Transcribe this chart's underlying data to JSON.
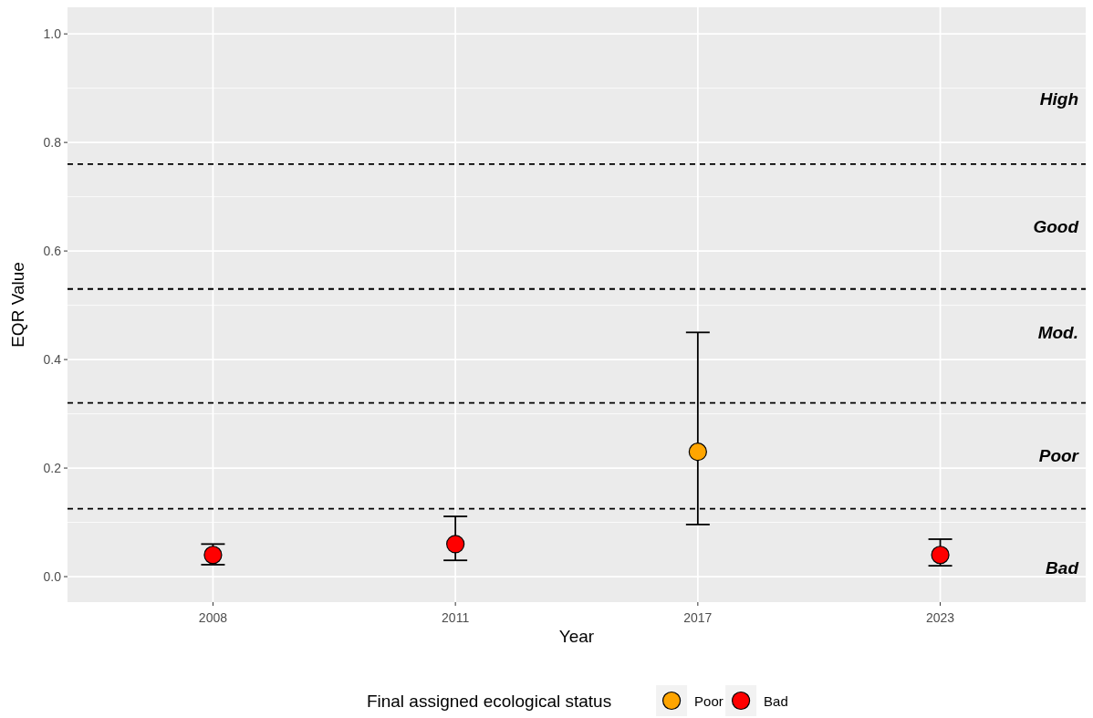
{
  "chart_data": {
    "type": "scatter",
    "xlabel": "Year",
    "ylabel": "EQR Value",
    "legend_title": "Final assigned ecological status",
    "categories": [
      "2008",
      "2011",
      "2017",
      "2023"
    ],
    "series": [
      {
        "name": "Poor",
        "color": "#ffa500",
        "values": [
          null,
          null,
          0.23,
          null
        ],
        "errors": [
          null,
          null,
          [
            0.096,
            0.45
          ],
          null
        ]
      },
      {
        "name": "Bad",
        "color": "#ff0000",
        "values": [
          0.04,
          0.06,
          null,
          0.04
        ],
        "errors": [
          [
            0.022,
            0.06
          ],
          [
            0.03,
            0.111
          ],
          null,
          [
            0.02,
            0.069
          ]
        ]
      }
    ],
    "ylim": [
      -0.047,
      1.049
    ],
    "yticks": [
      {
        "value": 0,
        "label": "0.0"
      },
      0.2,
      0.4,
      0.6,
      0.8,
      {
        "value": 1,
        "label": "1.0"
      }
    ],
    "ref_lines": [
      {
        "axis": "y",
        "value": 0.76,
        "line_style": "dashed",
        "color": "#000000"
      },
      {
        "axis": "y",
        "value": 0.53,
        "line_style": "dashed",
        "color": "#000000"
      },
      {
        "axis": "y",
        "value": 0.32,
        "line_style": "dashed",
        "color": "#000000"
      },
      {
        "axis": "y",
        "value": 0.125,
        "line_style": "dashed",
        "color": "#000000"
      }
    ],
    "annotations": [
      "High",
      "Good",
      "Mod.",
      "Poor",
      "Bad"
    ],
    "grid": true,
    "legend": "bottom",
    "marker": "circle"
  }
}
